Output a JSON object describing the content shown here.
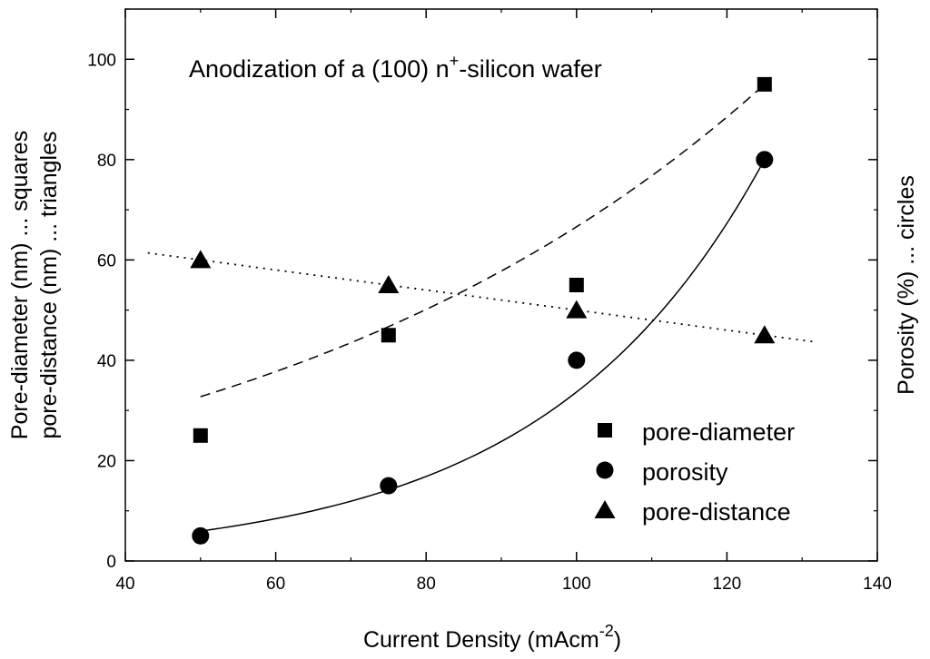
{
  "chart_data": {
    "type": "scatter",
    "title_parts": [
      "Anodization of a (100) n",
      "+",
      "-silicon wafer"
    ],
    "xlabel_parts": [
      "Current Density (mAcm",
      "-2",
      ")"
    ],
    "ylabel_left": [
      "Pore-diameter (nm) ... squares",
      "pore-distance (nm) ... triangles"
    ],
    "ylabel_right": "Porosity (%) ... circles",
    "xlim": [
      40,
      140
    ],
    "ylim": [
      0,
      110
    ],
    "xticks": [
      40,
      60,
      80,
      100,
      120,
      140
    ],
    "yticks": [
      0,
      20,
      40,
      60,
      80,
      100
    ],
    "legend_position": "lower-right",
    "series": [
      {
        "name": "pore-diameter",
        "marker": "square",
        "x": [
          50,
          75,
          100,
          125
        ],
        "y": [
          25,
          45,
          55,
          95
        ],
        "fit": {
          "style": "dashed",
          "model": "exponential",
          "a": 16.1,
          "b": 0.0142,
          "x_range": [
            50,
            125
          ]
        }
      },
      {
        "name": "porosity",
        "marker": "circle",
        "x": [
          50,
          75,
          100,
          125
        ],
        "y": [
          5,
          15,
          40,
          80
        ],
        "fit": {
          "style": "solid",
          "model": "exponential",
          "a": 1.055,
          "b": 0.03463,
          "x_range": [
            50,
            125
          ]
        }
      },
      {
        "name": "pore-distance",
        "marker": "triangle",
        "x": [
          50,
          75,
          100,
          125
        ],
        "y": [
          60,
          55,
          50,
          45
        ],
        "fit": {
          "style": "dotted",
          "model": "linear",
          "slope": -0.2,
          "intercept": 70,
          "x_range": [
            43,
            132
          ]
        }
      }
    ],
    "colors": {
      "axis": "#000000",
      "marks": "#000000"
    }
  }
}
